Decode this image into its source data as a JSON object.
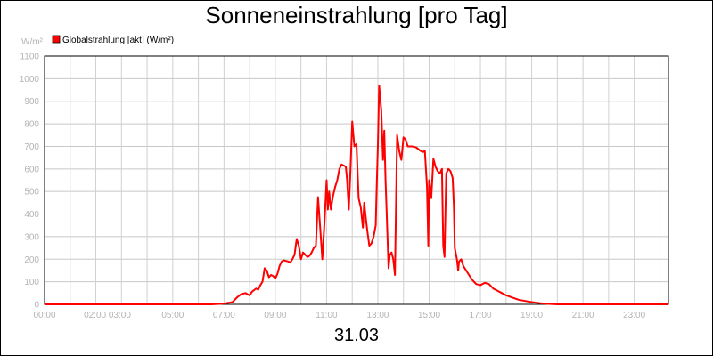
{
  "chart_data": {
    "type": "line",
    "title": "Sonneneinstrahlung [pro Tag]",
    "xlabel": "31.03",
    "ylabel": "W/m²",
    "ylim": [
      0,
      1100
    ],
    "y_ticks": [
      0,
      100,
      200,
      300,
      400,
      500,
      600,
      700,
      800,
      900,
      1000,
      1100
    ],
    "xlim": [
      "00:00",
      "24:20"
    ],
    "x_tick_labels": [
      "00:00",
      "02:00 03:00",
      "05:00",
      "07:00",
      "09:00",
      "11:00",
      "13:00",
      "15:00",
      "17:00",
      "19:00",
      "21:00",
      "23:00"
    ],
    "grid": true,
    "legend_position": "top-left",
    "series": [
      {
        "name": "Globalstrahlung [akt] (W/m²)",
        "color": "#ff0000",
        "points": [
          [
            "00:00",
            0
          ],
          [
            "06:30",
            0
          ],
          [
            "06:50",
            2
          ],
          [
            "07:05",
            5
          ],
          [
            "07:20",
            10
          ],
          [
            "07:30",
            30
          ],
          [
            "07:40",
            45
          ],
          [
            "07:50",
            50
          ],
          [
            "08:00",
            40
          ],
          [
            "08:05",
            55
          ],
          [
            "08:15",
            70
          ],
          [
            "08:20",
            65
          ],
          [
            "08:25",
            85
          ],
          [
            "08:30",
            100
          ],
          [
            "08:35",
            160
          ],
          [
            "08:40",
            150
          ],
          [
            "08:45",
            120
          ],
          [
            "08:50",
            130
          ],
          [
            "08:55",
            125
          ],
          [
            "09:00",
            115
          ],
          [
            "09:05",
            135
          ],
          [
            "09:10",
            170
          ],
          [
            "09:15",
            190
          ],
          [
            "09:20",
            195
          ],
          [
            "09:30",
            190
          ],
          [
            "09:35",
            185
          ],
          [
            "09:40",
            200
          ],
          [
            "09:45",
            220
          ],
          [
            "09:50",
            290
          ],
          [
            "09:55",
            260
          ],
          [
            "10:00",
            200
          ],
          [
            "10:05",
            230
          ],
          [
            "10:10",
            220
          ],
          [
            "10:15",
            210
          ],
          [
            "10:20",
            215
          ],
          [
            "10:25",
            230
          ],
          [
            "10:30",
            250
          ],
          [
            "10:35",
            260
          ],
          [
            "10:40",
            475
          ],
          [
            "10:45",
            340
          ],
          [
            "10:50",
            200
          ],
          [
            "10:55",
            360
          ],
          [
            "11:00",
            550
          ],
          [
            "11:03",
            420
          ],
          [
            "11:06",
            500
          ],
          [
            "11:10",
            420
          ],
          [
            "11:15",
            480
          ],
          [
            "11:20",
            520
          ],
          [
            "11:25",
            550
          ],
          [
            "11:30",
            600
          ],
          [
            "11:35",
            620
          ],
          [
            "11:40",
            615
          ],
          [
            "11:45",
            610
          ],
          [
            "11:48",
            550
          ],
          [
            "11:52",
            420
          ],
          [
            "11:56",
            600
          ],
          [
            "12:00",
            810
          ],
          [
            "12:05",
            700
          ],
          [
            "12:10",
            710
          ],
          [
            "12:15",
            470
          ],
          [
            "12:20",
            430
          ],
          [
            "12:25",
            340
          ],
          [
            "12:28",
            450
          ],
          [
            "12:32",
            380
          ],
          [
            "12:35",
            330
          ],
          [
            "12:40",
            260
          ],
          [
            "12:45",
            270
          ],
          [
            "12:50",
            300
          ],
          [
            "12:55",
            350
          ],
          [
            "12:57",
            500
          ],
          [
            "13:00",
            700
          ],
          [
            "13:03",
            970
          ],
          [
            "13:08",
            860
          ],
          [
            "13:12",
            640
          ],
          [
            "13:15",
            770
          ],
          [
            "13:18",
            550
          ],
          [
            "13:22",
            330
          ],
          [
            "13:25",
            160
          ],
          [
            "13:28",
            220
          ],
          [
            "13:32",
            230
          ],
          [
            "13:36",
            200
          ],
          [
            "13:40",
            130
          ],
          [
            "13:45",
            750
          ],
          [
            "13:50",
            680
          ],
          [
            "13:55",
            640
          ],
          [
            "14:00",
            740
          ],
          [
            "14:05",
            730
          ],
          [
            "14:10",
            700
          ],
          [
            "14:20",
            700
          ],
          [
            "14:30",
            695
          ],
          [
            "14:40",
            680
          ],
          [
            "14:45",
            675
          ],
          [
            "14:50",
            680
          ],
          [
            "14:55",
            520
          ],
          [
            "14:58",
            260
          ],
          [
            "15:00",
            550
          ],
          [
            "15:03",
            510
          ],
          [
            "15:05",
            470
          ],
          [
            "15:10",
            645
          ],
          [
            "15:15",
            610
          ],
          [
            "15:20",
            590
          ],
          [
            "15:25",
            580
          ],
          [
            "15:30",
            600
          ],
          [
            "15:33",
            260
          ],
          [
            "15:36",
            210
          ],
          [
            "15:40",
            580
          ],
          [
            "15:45",
            600
          ],
          [
            "15:50",
            590
          ],
          [
            "15:55",
            560
          ],
          [
            "15:58",
            430
          ],
          [
            "16:00",
            250
          ],
          [
            "16:05",
            200
          ],
          [
            "16:08",
            150
          ],
          [
            "16:10",
            190
          ],
          [
            "16:15",
            200
          ],
          [
            "16:20",
            170
          ],
          [
            "16:30",
            140
          ],
          [
            "16:40",
            110
          ],
          [
            "16:50",
            90
          ],
          [
            "17:00",
            85
          ],
          [
            "17:10",
            95
          ],
          [
            "17:20",
            90
          ],
          [
            "17:30",
            70
          ],
          [
            "17:40",
            60
          ],
          [
            "17:50",
            50
          ],
          [
            "18:00",
            40
          ],
          [
            "18:15",
            30
          ],
          [
            "18:30",
            20
          ],
          [
            "18:45",
            15
          ],
          [
            "19:00",
            10
          ],
          [
            "19:20",
            5
          ],
          [
            "19:40",
            2
          ],
          [
            "20:00",
            0
          ],
          [
            "24:20",
            0
          ]
        ]
      }
    ]
  }
}
